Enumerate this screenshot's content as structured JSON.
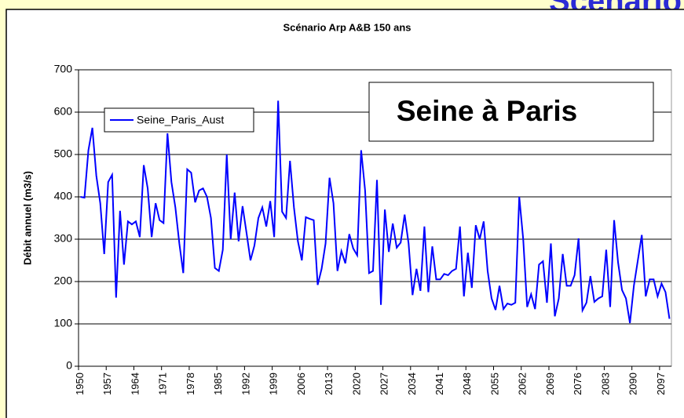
{
  "header": "Scénario",
  "chart_data": {
    "type": "line",
    "title": "Scénario Arp A&B 150 ans",
    "y_label": "Débit annuel (m3/s)",
    "annotation": "Seine à Paris",
    "categories": [
      "1950",
      null,
      null,
      null,
      null,
      null,
      null,
      "1957",
      null,
      null,
      null,
      null,
      null,
      null,
      "1964",
      null,
      null,
      null,
      null,
      null,
      null,
      "1971",
      null,
      null,
      null,
      null,
      null,
      null,
      "1978",
      null,
      null,
      null,
      null,
      null,
      null,
      "1985",
      null,
      null,
      null,
      null,
      null,
      null,
      "1992",
      null,
      null,
      null,
      null,
      null,
      null,
      "1999",
      null,
      null,
      null,
      null,
      null,
      null,
      "2006",
      null,
      null,
      null,
      null,
      null,
      null,
      "2013",
      null,
      null,
      null,
      null,
      null,
      null,
      "2020",
      null,
      null,
      null,
      null,
      null,
      null,
      "2027",
      null,
      null,
      null,
      null,
      null,
      null,
      "2034",
      null,
      null,
      null,
      null,
      null,
      null,
      "2041",
      null,
      null,
      null,
      null,
      null,
      null,
      "2048",
      null,
      null,
      null,
      null,
      null,
      null,
      "2055",
      null,
      null,
      null,
      null,
      null,
      null,
      "2062",
      null,
      null,
      null,
      null,
      null,
      null,
      "2069",
      null,
      null,
      null,
      null,
      null,
      null,
      "2076",
      null,
      null,
      null,
      null,
      null,
      null,
      "2083",
      null,
      null,
      null,
      null,
      null,
      null,
      "2090",
      null,
      null,
      null,
      null,
      null,
      null,
      "2097",
      null,
      null
    ],
    "series": [
      {
        "name": "Seine_Paris_Aust",
        "color": "#0000ff",
        "values": [
          400,
          398,
          510,
          563,
          450,
          385,
          265,
          435,
          452,
          162,
          367,
          240,
          342,
          335,
          342,
          305,
          475,
          420,
          305,
          385,
          345,
          338,
          550,
          435,
          375,
          290,
          220,
          465,
          457,
          387,
          415,
          420,
          400,
          350,
          232,
          225,
          275,
          500,
          300,
          410,
          295,
          378,
          315,
          250,
          285,
          350,
          375,
          330,
          390,
          305,
          627,
          365,
          350,
          485,
          375,
          295,
          250,
          352,
          348,
          345,
          192,
          230,
          290,
          445,
          385,
          225,
          272,
          243,
          312,
          278,
          262,
          510,
          415,
          220,
          225,
          440,
          145,
          370,
          270,
          337,
          280,
          292,
          358,
          290,
          168,
          230,
          178,
          330,
          175,
          283,
          205,
          205,
          218,
          215,
          225,
          230,
          330,
          165,
          268,
          185,
          333,
          300,
          342,
          225,
          160,
          133,
          190,
          135,
          148,
          145,
          150,
          400,
          300,
          140,
          170,
          135,
          240,
          248,
          150,
          290,
          118,
          160,
          265,
          190,
          190,
          215,
          302,
          132,
          150,
          213,
          152,
          160,
          165,
          275,
          140,
          345,
          245,
          180,
          160,
          102,
          190,
          250,
          310,
          165,
          205,
          205,
          165,
          195,
          175,
          112
        ]
      }
    ],
    "ylim": [
      0,
      700
    ],
    "yticks": [
      0,
      100,
      200,
      300,
      400,
      500,
      600,
      700
    ],
    "grid": true,
    "legend": "upper left"
  }
}
